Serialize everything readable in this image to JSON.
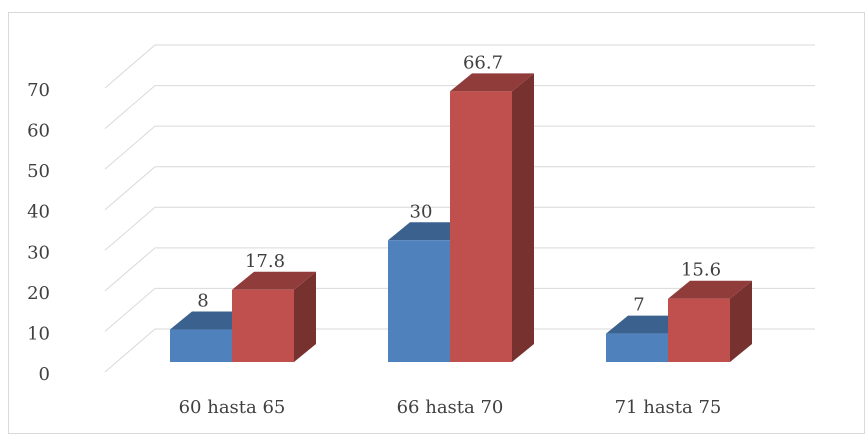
{
  "chart_data": {
    "type": "bar3d",
    "categories": [
      "60 hasta 65",
      "66 hasta 70",
      "71 hasta 75"
    ],
    "series": [
      {
        "color": "#4f81bd",
        "values": [
          8,
          30,
          7
        ]
      },
      {
        "color": "#c0504d",
        "values": [
          17.8,
          66.7,
          15.6
        ]
      }
    ],
    "ylim": [
      0,
      70
    ],
    "yticks": [
      0,
      10,
      20,
      30,
      40,
      50,
      60,
      70
    ],
    "grid": true
  }
}
